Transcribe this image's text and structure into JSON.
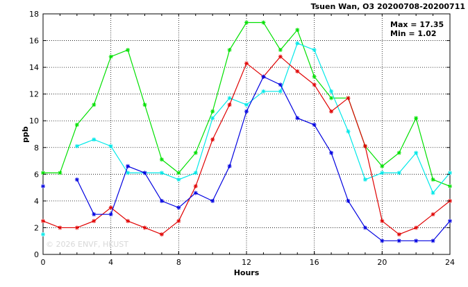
{
  "chart_data": {
    "type": "line",
    "title": "Tsuen Wan, O3 20200708-20200711",
    "xlabel": "Hours",
    "ylabel": "ppb",
    "xlim": [
      0,
      24
    ],
    "ylim": [
      0,
      18
    ],
    "xticks": [
      0,
      4,
      8,
      12,
      16,
      20,
      24
    ],
    "yticks": [
      0,
      2,
      4,
      6,
      8,
      10,
      12,
      14,
      16,
      18
    ],
    "grid": true,
    "stats": {
      "max_label": "Max = 17.35",
      "min_label": "Min =  1.02"
    },
    "watermark": "© 2026 ENVF, HKUST",
    "x": [
      0,
      1,
      2,
      3,
      4,
      5,
      6,
      7,
      8,
      9,
      10,
      11,
      12,
      13,
      14,
      15,
      16,
      17,
      18,
      19,
      20,
      21,
      22,
      23,
      24
    ],
    "series": [
      {
        "color": "#00e000",
        "values": [
          6.1,
          6.1,
          9.7,
          11.2,
          14.8,
          15.3,
          11.2,
          7.1,
          6.1,
          7.6,
          10.7,
          15.3,
          17.35,
          17.35,
          15.3,
          16.8,
          13.3,
          11.7,
          11.7,
          8.1,
          6.6,
          7.6,
          10.2,
          5.6,
          5.1
        ]
      },
      {
        "color": "#00e8e8",
        "values": [
          1.5,
          null,
          8.1,
          8.6,
          8.1,
          6.1,
          6.1,
          6.1,
          5.6,
          6.1,
          10.2,
          11.7,
          11.2,
          12.2,
          12.2,
          15.8,
          15.3,
          12.2,
          9.2,
          5.6,
          6.1,
          6.1,
          7.6,
          4.6,
          6.1
        ]
      },
      {
        "color": "#e00000",
        "values": [
          2.5,
          2.0,
          2.0,
          2.5,
          3.5,
          2.5,
          2.0,
          1.5,
          2.5,
          5.1,
          8.6,
          11.2,
          14.3,
          13.3,
          14.8,
          13.7,
          12.7,
          10.7,
          11.7,
          8.1,
          2.5,
          1.5,
          2.0,
          3.0,
          4.0
        ]
      },
      {
        "color": "#0000e0",
        "values": [
          5.1,
          null,
          5.6,
          3.0,
          3.0,
          6.6,
          6.1,
          4.0,
          3.5,
          4.6,
          4.0,
          6.6,
          10.7,
          13.3,
          12.7,
          10.2,
          9.7,
          7.6,
          4.0,
          2.0,
          1.02,
          1.02,
          1.02,
          1.02,
          2.5
        ]
      }
    ]
  }
}
